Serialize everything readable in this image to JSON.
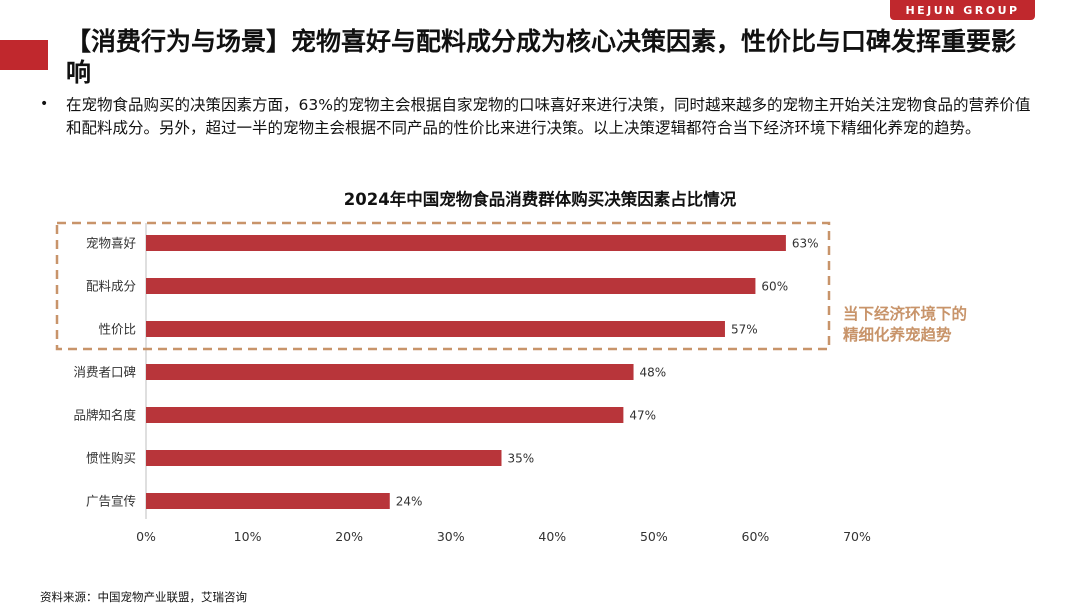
{
  "brand": "HEJUN GROUP",
  "title": "【消费行为与场景】宠物喜好与配料成分成为核心决策因素，性价比与口碑发挥重要影响",
  "bullet": "在宠物食品购买的决策因素方面，63%的宠物主会根据自家宠物的口味喜好来进行决策，同时越来越多的宠物主开始关注宠物食品的营养价值和配料成分。另外，超过一半的宠物主会根据不同产品的性价比来进行决策。以上决策逻辑都符合当下经济环境下精细化养宠的趋势。",
  "highlight_note_line1": "当下经济环境下的",
  "highlight_note_line2": "精细化养宠趋势",
  "source": "资料来源：中国宠物产业联盟，艾瑞咨询",
  "colors": {
    "bar": "#b8353a",
    "highlight": "#c8946a",
    "accent": "#c0282d"
  },
  "chart_data": {
    "type": "bar",
    "orientation": "horizontal",
    "title": "2024年中国宠物食品消费群体购买决策因素占比情况",
    "categories": [
      "宠物喜好",
      "配料成分",
      "性价比",
      "消费者口碑",
      "品牌知名度",
      "惯性购买",
      "广告宣传"
    ],
    "values": [
      63,
      60,
      57,
      48,
      47,
      35,
      24
    ],
    "value_labels": [
      "63%",
      "60%",
      "57%",
      "48%",
      "47%",
      "35%",
      "24%"
    ],
    "xlim": [
      0,
      70
    ],
    "xticks": [
      "0%",
      "10%",
      "20%",
      "30%",
      "40%",
      "50%",
      "60%",
      "70%"
    ],
    "xtick_values": [
      0,
      10,
      20,
      30,
      40,
      50,
      60,
      70
    ],
    "highlighted_categories": [
      "宠物喜好",
      "配料成分",
      "性价比"
    ],
    "grid": false
  }
}
